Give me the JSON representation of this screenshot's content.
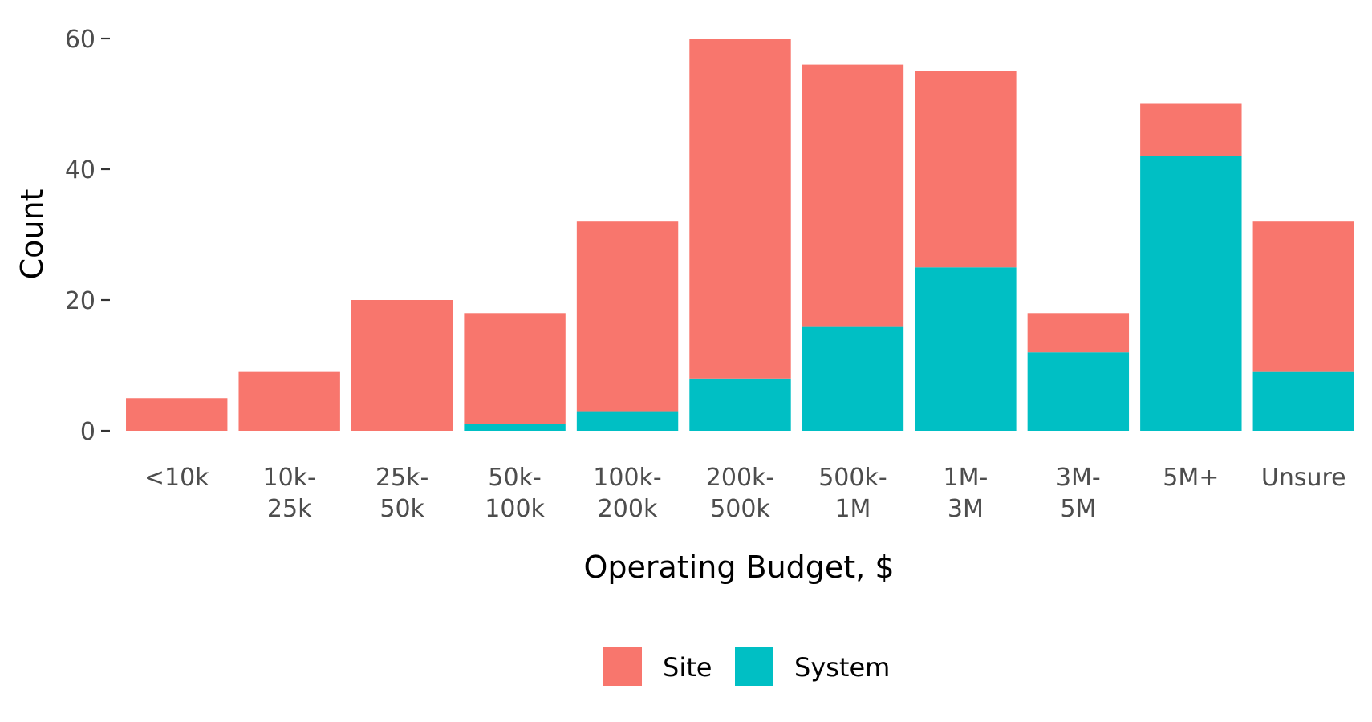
{
  "chart_data": {
    "type": "bar",
    "stacked": true,
    "categories": [
      "<10k",
      "10k-25k",
      "25k-50k",
      "50k-100k",
      "100k-200k",
      "200k-500k",
      "500k-1M",
      "1M-3M",
      "3M-5M",
      "5M+",
      "Unsure"
    ],
    "category_label_lines": [
      [
        "<10k"
      ],
      [
        "10k-",
        "25k"
      ],
      [
        "25k-",
        "50k"
      ],
      [
        "50k-",
        "100k"
      ],
      [
        "100k-",
        "200k"
      ],
      [
        "200k-",
        "500k"
      ],
      [
        "500k-",
        "1M"
      ],
      [
        "1M-",
        "3M"
      ],
      [
        "3M-",
        "5M"
      ],
      [
        "5M+"
      ],
      [
        "Unsure"
      ]
    ],
    "series": [
      {
        "name": "Site",
        "color": "#F8766D",
        "values": [
          5,
          9,
          20,
          17,
          29,
          52,
          40,
          30,
          6,
          8,
          23
        ]
      },
      {
        "name": "System",
        "color": "#00BFC4",
        "values": [
          0,
          0,
          0,
          1,
          3,
          8,
          16,
          25,
          12,
          42,
          9
        ]
      }
    ],
    "xlabel": "Operating Budget, $",
    "ylabel": "Count",
    "ylim": [
      0,
      60
    ],
    "yticks": [
      0,
      20,
      40,
      60
    ],
    "grid": false,
    "legend_position": "bottom"
  }
}
